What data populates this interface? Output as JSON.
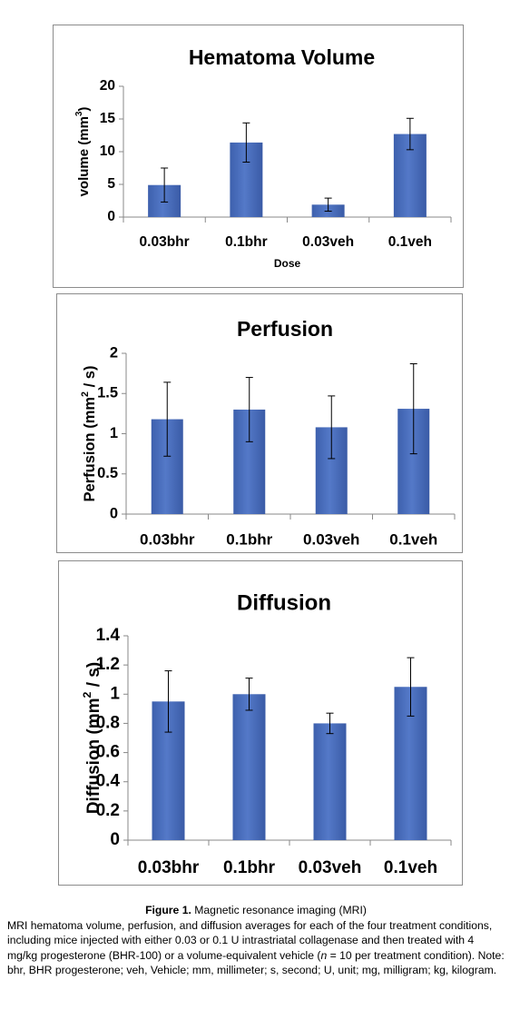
{
  "chart_data": [
    {
      "type": "bar",
      "title": "Hematoma Volume",
      "ylabel_main": "volume (mm",
      "ylabel_sup": "3",
      "ylabel_end": ")",
      "xlabel": "Dose",
      "categories": [
        "0.03bhr",
        "0.1bhr",
        "0.03veh",
        "0.1veh"
      ],
      "values": [
        4.9,
        11.4,
        1.9,
        12.7
      ],
      "error": [
        2.6,
        3.0,
        1.0,
        2.4
      ],
      "ylim": [
        0,
        20
      ],
      "yticks": [
        "0",
        "5",
        "10",
        "15",
        "20"
      ],
      "color": "#4a6fbf",
      "grid": false
    },
    {
      "type": "bar",
      "title": "Perfusion",
      "ylabel_main": "Perfusion (mm",
      "ylabel_sup": "2",
      "ylabel_end": " / s)",
      "xlabel": "",
      "categories": [
        "0.03bhr",
        "0.1bhr",
        "0.03veh",
        "0.1veh"
      ],
      "values": [
        1.18,
        1.3,
        1.08,
        1.31
      ],
      "error": [
        0.46,
        0.4,
        0.39,
        0.56
      ],
      "ylim": [
        0,
        2
      ],
      "yticks": [
        "0",
        "0.5",
        "1",
        "1.5",
        "2"
      ],
      "color": "#4a6fbf",
      "grid": false
    },
    {
      "type": "bar",
      "title": "Diffusion",
      "ylabel_main": "Diffusion (mm",
      "ylabel_sup": "2",
      "ylabel_end": " / s)",
      "xlabel": "",
      "categories": [
        "0.03bhr",
        "0.1bhr",
        "0.03veh",
        "0.1veh"
      ],
      "values": [
        0.95,
        1.0,
        0.8,
        1.05
      ],
      "error": [
        0.21,
        0.11,
        0.07,
        0.2
      ],
      "ylim": [
        0,
        1.4
      ],
      "yticks": [
        "0",
        "0.2",
        "0.4",
        "0.6",
        "0.8",
        "1",
        "1.2",
        "1.4"
      ],
      "color": "#4a6fbf",
      "grid": false
    }
  ],
  "caption": {
    "figure_label": "Figure 1.",
    "figure_title": " Magnetic resonance imaging (MRI)",
    "text_1": "MRI hematoma volume, perfusion, and diffusion averages for each of the four treatment conditions, including mice injected with either 0.03 or 0.1 U intrastriatal collagenase and then treated with 4 mg/kg progesterone (BHR-100) or a volume-equivalent vehicle (",
    "n_symbol": "n",
    "text_2": " = 10 per treatment condition). Note: bhr, BHR progesterone; veh, Vehicle; mm, millimeter; s, second; U, unit; mg, milligram; kg, kilogram."
  }
}
